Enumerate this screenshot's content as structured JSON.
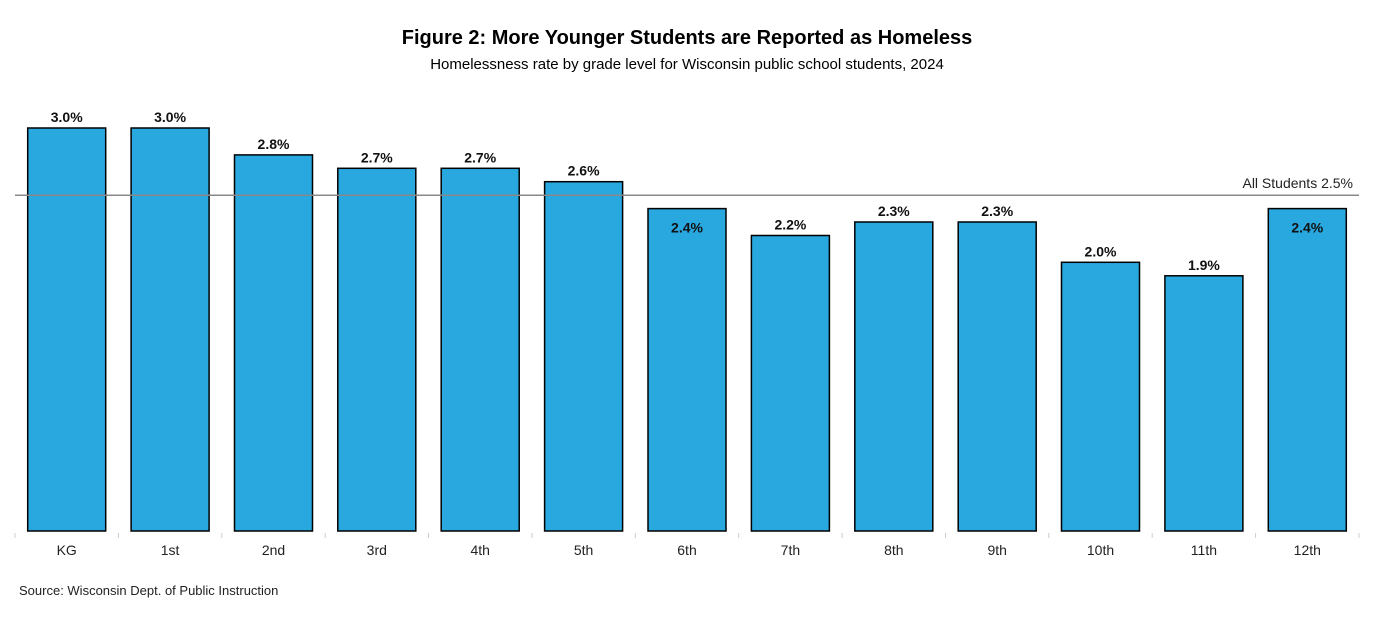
{
  "chart_data": {
    "type": "bar",
    "title": "Figure 2: More Younger Students are Reported as Homeless",
    "subtitle": "Homelessness rate by grade level for Wisconsin public school students, 2024",
    "categories": [
      "KG",
      "1st",
      "2nd",
      "3rd",
      "4th",
      "5th",
      "6th",
      "7th",
      "8th",
      "9th",
      "10th",
      "11th",
      "12th"
    ],
    "values": [
      3.0,
      3.0,
      2.8,
      2.7,
      2.7,
      2.6,
      2.4,
      2.2,
      2.3,
      2.3,
      2.0,
      1.9,
      2.4
    ],
    "value_labels": [
      "3.0%",
      "3.0%",
      "2.8%",
      "2.7%",
      "2.7%",
      "2.6%",
      "2.4%",
      "2.2%",
      "2.3%",
      "2.3%",
      "2.0%",
      "1.9%",
      "2.4%"
    ],
    "reference_line": {
      "label": "All Students 2.5%",
      "value": 2.5
    },
    "ylim": [
      0,
      3.0
    ],
    "xlabel": "",
    "ylabel": "",
    "grid": false,
    "legend": "none",
    "bar_color": "#29A8E0",
    "source": "Source: Wisconsin Dept. of Public Instruction"
  }
}
